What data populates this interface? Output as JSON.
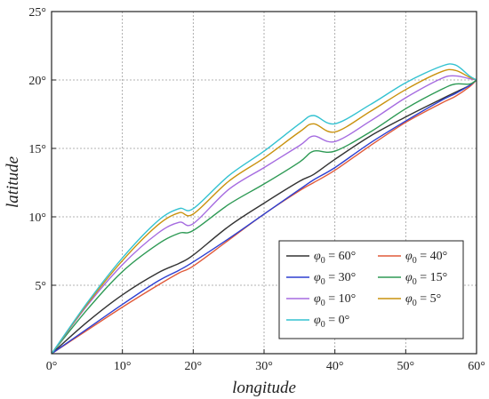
{
  "chart_data": {
    "type": "line",
    "xlabel": "longitude",
    "ylabel": "latitude",
    "xlim": [
      0,
      60
    ],
    "ylim": [
      0,
      25
    ],
    "x_ticks": [
      0,
      10,
      20,
      30,
      40,
      50,
      60
    ],
    "x_tick_labels": [
      "0°",
      "10°",
      "20°",
      "30°",
      "40°",
      "50°",
      "60°"
    ],
    "y_ticks": [
      5,
      10,
      15,
      20,
      25
    ],
    "y_tick_labels": [
      "5°",
      "10°",
      "15°",
      "20°",
      "25°"
    ],
    "grid": true,
    "legend_position": "bottom-right",
    "legend_symbol": "φ",
    "legend_subscript": "0",
    "x": [
      0,
      5,
      10,
      15,
      18,
      20,
      25,
      30,
      35,
      37,
      40,
      45,
      50,
      55,
      57,
      59,
      60
    ],
    "series": [
      {
        "name": "= 60°",
        "color": "#333333",
        "values": [
          0,
          2.3,
          4.3,
          5.9,
          6.6,
          7.2,
          9.3,
          11.0,
          12.6,
          13.1,
          14.2,
          15.9,
          17.3,
          18.6,
          19.1,
          19.6,
          20.0
        ]
      },
      {
        "name": "= 40°",
        "color": "#e05a3a",
        "values": [
          0,
          1.7,
          3.4,
          5.0,
          5.9,
          6.4,
          8.3,
          10.2,
          11.9,
          12.5,
          13.4,
          15.2,
          16.9,
          18.3,
          18.8,
          19.5,
          20.0
        ]
      },
      {
        "name": "= 30°",
        "color": "#2d3fd1",
        "values": [
          0,
          1.8,
          3.6,
          5.3,
          6.1,
          6.7,
          8.4,
          10.2,
          12.0,
          12.7,
          13.6,
          15.4,
          17.0,
          18.5,
          19.0,
          19.6,
          20.0
        ]
      },
      {
        "name": "= 15°",
        "color": "#2e9a55",
        "values": [
          0,
          3.2,
          6.0,
          8.0,
          8.8,
          9.0,
          10.9,
          12.4,
          14.0,
          14.8,
          14.8,
          16.2,
          17.9,
          19.3,
          19.7,
          19.7,
          20.0
        ]
      },
      {
        "name": "= 10°",
        "color": "#a56be0",
        "values": [
          0,
          3.5,
          6.5,
          8.8,
          9.6,
          9.5,
          12.0,
          13.6,
          15.2,
          15.9,
          15.5,
          17.0,
          18.7,
          20.1,
          20.3,
          20.1,
          20.0
        ]
      },
      {
        "name": "= 5°",
        "color": "#c9920e",
        "values": [
          0,
          3.6,
          6.8,
          9.4,
          10.3,
          10.2,
          12.6,
          14.3,
          16.2,
          16.8,
          16.2,
          17.7,
          19.3,
          20.6,
          20.7,
          20.2,
          20.0
        ]
      },
      {
        "name": "= 0°",
        "color": "#33c2d1",
        "values": [
          0,
          3.7,
          7.0,
          9.7,
          10.6,
          10.6,
          13.0,
          14.8,
          16.8,
          17.4,
          16.8,
          18.2,
          19.8,
          21.0,
          21.1,
          20.3,
          20.0
        ]
      }
    ]
  }
}
